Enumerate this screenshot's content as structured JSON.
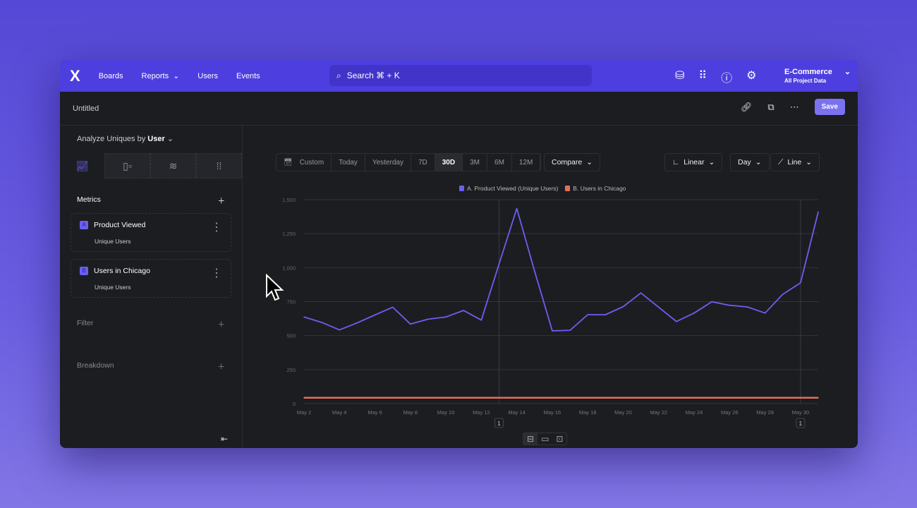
{
  "nav": {
    "logo": "X",
    "items": [
      "Boards",
      "Reports",
      "Users",
      "Events"
    ],
    "search": "Search  ⌘ + K",
    "project": "E-Commerce",
    "project_sub": "All Project Data"
  },
  "subheader": {
    "title": "Untitled",
    "save": "Save"
  },
  "sidebar": {
    "analyze_label": "Analyze Uniques by",
    "analyze_value": "User",
    "metrics_label": "Metrics",
    "metrics": [
      {
        "badge": "A",
        "name": "Product Viewed",
        "sub": "Unique Users"
      },
      {
        "badge": "B",
        "name": "Users in Chicago",
        "sub": "Unique Users"
      }
    ],
    "filter": "Filter",
    "breakdown": "Breakdown"
  },
  "toolbar": {
    "ranges": [
      "Custom",
      "Today",
      "Yesterday",
      "7D",
      "30D",
      "3M",
      "6M",
      "12M"
    ],
    "selected": "30D",
    "compare": "Compare",
    "scale": "Linear",
    "interval": "Day",
    "chart_type": "Line"
  },
  "chart_data": {
    "type": "line",
    "ylim": [
      0,
      1500
    ],
    "yticks": [
      "0",
      "250",
      "500",
      "750",
      "1,000",
      "1,250",
      "1,500"
    ],
    "xticks": [
      "May 2",
      "May 4",
      "May 6",
      "May 8",
      "May 10",
      "May 12",
      "May 14",
      "May 16",
      "May 18",
      "May 20",
      "May 22",
      "May 24",
      "May 26",
      "May 28",
      "May 30"
    ],
    "x": [
      "May 2",
      "May 3",
      "May 4",
      "May 5",
      "May 6",
      "May 7",
      "May 8",
      "May 9",
      "May 10",
      "May 11",
      "May 12",
      "May 13",
      "May 14",
      "May 15",
      "May 16",
      "May 17",
      "May 18",
      "May 19",
      "May 20",
      "May 21",
      "May 22",
      "May 23",
      "May 24",
      "May 25",
      "May 26",
      "May 27",
      "May 28",
      "May 29",
      "May 30",
      "May 31"
    ],
    "series": [
      {
        "name": "A. Product Viewed (Unique Users)",
        "color": "#6b5ff0",
        "values": [
          637,
          597,
          542,
          594,
          652,
          709,
          585,
          621,
          637,
          685,
          614,
          1027,
          1435,
          976,
          535,
          539,
          654,
          654,
          713,
          814,
          709,
          604,
          666,
          749,
          723,
          711,
          666,
          804,
          888,
          1410
        ]
      },
      {
        "name": "B. Users in Chicago",
        "color": "#e0705a",
        "values": [
          43,
          43,
          43,
          43,
          43,
          43,
          43,
          43,
          43,
          43,
          43,
          43,
          43,
          43,
          43,
          43,
          43,
          43,
          43,
          43,
          43,
          43,
          43,
          43,
          43,
          43,
          43,
          43,
          43,
          43
        ]
      }
    ],
    "annotations": [
      {
        "x": "May 13",
        "label": "1"
      },
      {
        "x": "May 30",
        "label": "1"
      }
    ],
    "grid": true,
    "legend": "top"
  }
}
